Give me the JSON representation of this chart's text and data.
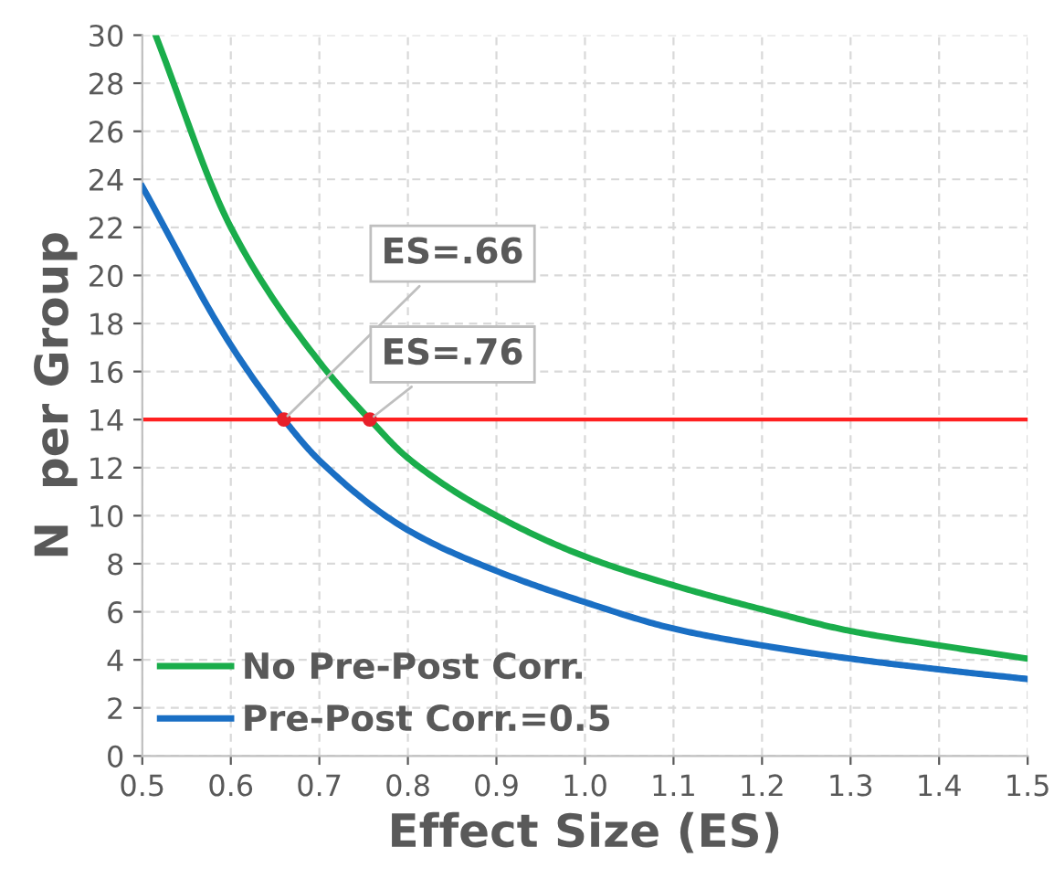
{
  "chart_data": {
    "type": "line",
    "xlabel": "Effect Size (ES)",
    "ylabel": "N  per Group",
    "xlim": [
      0.5,
      1.5
    ],
    "xticks": [
      {
        "value": 0.5,
        "label": "0.5"
      },
      {
        "value": 0.6,
        "label": "0.6"
      },
      {
        "value": 0.7,
        "label": "0.7"
      },
      {
        "value": 0.8,
        "label": "0.8"
      },
      {
        "value": 0.9,
        "label": "0.9"
      },
      {
        "value": 1.0,
        "label": "1.0"
      },
      {
        "value": 1.1,
        "label": "1.1"
      },
      {
        "value": 1.2,
        "label": "1.2"
      },
      {
        "value": 1.3,
        "label": "1.3"
      },
      {
        "value": 1.4,
        "label": "1.4"
      },
      {
        "value": 1.5,
        "label": "1.5"
      }
    ],
    "ylim": [
      0,
      30
    ],
    "yticks": [
      0,
      2,
      4,
      6,
      8,
      10,
      12,
      14,
      16,
      18,
      20,
      22,
      24,
      26,
      28,
      30
    ],
    "grid": true,
    "legend": "bottom left",
    "series": [
      {
        "name": "No Pre-Post Corr.",
        "color": "#1aad4b",
        "x": [
          0.515,
          0.6,
          0.7,
          0.757,
          0.8,
          0.9,
          1.0,
          1.1,
          1.2,
          1.3,
          1.4,
          1.5
        ],
        "values": [
          30,
          22.0,
          16.4,
          14,
          12.4,
          10.0,
          8.3,
          7.1,
          6.1,
          5.2,
          4.6,
          4.05
        ]
      },
      {
        "name": "Pre-Post Corr.=0.5",
        "color": "#1a6fc4",
        "x": [
          0.5,
          0.6,
          0.66,
          0.7,
          0.8,
          0.9,
          1.0,
          1.1,
          1.2,
          1.3,
          1.4,
          1.5
        ],
        "values": [
          23.7,
          17.1,
          14,
          12.3,
          9.4,
          7.7,
          6.4,
          5.3,
          4.6,
          4.05,
          3.6,
          3.2
        ]
      },
      {
        "type": "scatter",
        "color": "#e8202a",
        "x": [
          0.66,
          0.757
        ],
        "values": [
          14,
          14
        ],
        "marker": "circle"
      }
    ],
    "ref_lines": [
      {
        "axis": "y",
        "value": 14,
        "color": "#ff2020"
      }
    ],
    "annotations": [
      {
        "text": "ES=.66",
        "x": 0.66,
        "y": 14
      },
      {
        "text": "ES=.76",
        "x": 0.757,
        "y": 14
      }
    ]
  }
}
